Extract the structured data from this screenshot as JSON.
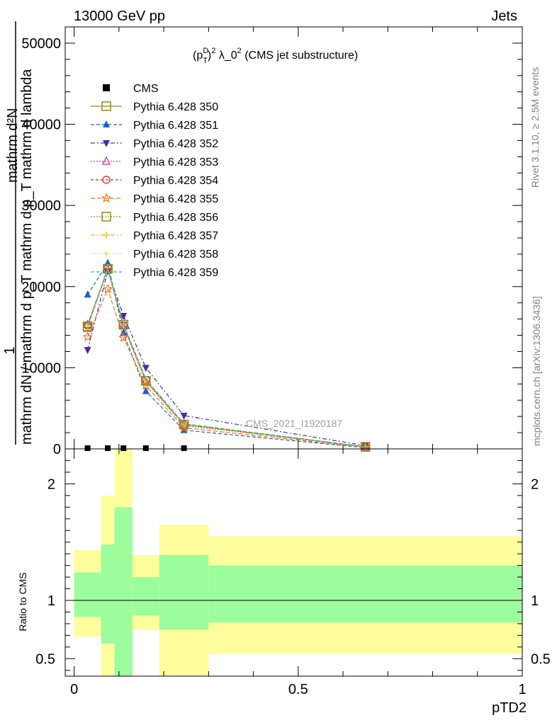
{
  "header": {
    "left": "13000 GeV pp",
    "right": "Jets",
    "title_main": "(p",
    "title_sup1": "D",
    "title_sub": "T",
    "title_rest": ")",
    "title_sup2": "2",
    "title_tail": " λ_0",
    "title_sup3": "2",
    "title_end": " (CMS jet substructure)"
  },
  "side_labels": {
    "rivet": "Rivet 3.1.10, ≥ 2.5M events",
    "mcplots": "mcplots.cern.ch [arXiv:1306.3436]",
    "watermark": "CMS_2021_I1920187"
  },
  "ylabel_top": {
    "one": "1",
    "num": "mathrm d²N",
    "den": "mathrm dN / mathrm d p_T mathrm d p_T mathrm d lambda"
  },
  "ratio_ylabel": "Ratio to CMS",
  "xlabel": "pTD2",
  "chart_data": [
    {
      "type": "line",
      "panel": "main",
      "xlim": [
        -0.02,
        1.0
      ],
      "ylim": [
        0,
        52000
      ],
      "yticks": [
        0,
        10000,
        20000,
        30000,
        40000,
        50000
      ],
      "ytick_labels": [
        "0",
        "10000",
        "20000",
        "30000",
        "40000",
        "50000"
      ],
      "x": [
        0.03,
        0.075,
        0.11,
        0.16,
        0.245,
        0.65
      ],
      "bin_edges": [
        0.0,
        0.06,
        0.09,
        0.13,
        0.19,
        0.3,
        1.0
      ],
      "series": [
        {
          "name": "CMS",
          "color": "#000000",
          "marker": "square-filled",
          "dash": "none",
          "values": [
            0,
            0,
            0,
            0,
            0,
            0
          ]
        },
        {
          "name": "Pythia 6.428 350",
          "color": "#8c8c2a",
          "marker": "square-open",
          "dash": "solid",
          "values": [
            15000,
            22200,
            15300,
            8400,
            3000,
            250
          ]
        },
        {
          "name": "Pythia 6.428 351",
          "color": "#1f5fbf",
          "marker": "triangle-up-filled",
          "dash": "5,3",
          "values": [
            19000,
            22900,
            14300,
            7100,
            2300,
            150
          ]
        },
        {
          "name": "Pythia 6.428 352",
          "color": "#4b2aa8",
          "marker": "triangle-down-filled",
          "dash": "6,3,2,3",
          "values": [
            12200,
            21900,
            16400,
            10000,
            4100,
            400
          ]
        },
        {
          "name": "Pythia 6.428 353",
          "color": "#c0307f",
          "marker": "triangle-up-open",
          "dash": "2,2",
          "values": [
            15300,
            22100,
            15100,
            8300,
            2900,
            240
          ]
        },
        {
          "name": "Pythia 6.428 354",
          "color": "#d62020",
          "marker": "circle-open",
          "dash": "4,3",
          "values": [
            15200,
            22300,
            15200,
            8500,
            3000,
            250
          ]
        },
        {
          "name": "Pythia 6.428 355",
          "color": "#f07020",
          "marker": "star-open",
          "dash": "6,3",
          "values": [
            13800,
            19700,
            13700,
            7800,
            2600,
            200
          ]
        },
        {
          "name": "Pythia 6.428 356",
          "color": "#8c8c2a",
          "marker": "square-open",
          "dash": "2,2",
          "values": [
            15100,
            22200,
            15300,
            8400,
            3000,
            250
          ]
        },
        {
          "name": "Pythia 6.428 357",
          "color": "#d4c400",
          "marker": "cross",
          "dash": "6,3,2,3",
          "values": [
            15100,
            22300,
            15400,
            8500,
            3000,
            250
          ]
        },
        {
          "name": "Pythia 6.428 358",
          "color": "#b8e020",
          "marker": "plus-dot",
          "dash": "1,2",
          "values": [
            15200,
            22300,
            15400,
            8500,
            3100,
            260
          ]
        },
        {
          "name": "Pythia 6.428 359",
          "color": "#20b0b0",
          "marker": "none",
          "dash": "5,3",
          "values": [
            15300,
            22200,
            15400,
            8600,
            3100,
            260
          ]
        }
      ]
    },
    {
      "type": "area",
      "panel": "ratio",
      "xlim": [
        -0.02,
        1.0
      ],
      "ylim": [
        0.35,
        2.3
      ],
      "yticks": [
        0.5,
        1,
        2
      ],
      "ytick_labels": [
        "0.5",
        "1",
        "2"
      ],
      "xticks": [
        0,
        0.5,
        1
      ],
      "xtick_labels": [
        "0",
        "0.5",
        "1"
      ],
      "reference_line": 1,
      "bands": [
        {
          "x0": 0.0,
          "x1": 0.06,
          "green": [
            0.86,
            1.24
          ],
          "yellow": [
            0.69,
            1.43
          ]
        },
        {
          "x0": 0.06,
          "x1": 0.09,
          "green": [
            0.63,
            1.48
          ],
          "yellow": [
            0.3,
            1.9
          ]
        },
        {
          "x0": 0.09,
          "x1": 0.13,
          "green": [
            0.3,
            1.8
          ],
          "yellow": [
            0.3,
            2.5
          ]
        },
        {
          "x0": 0.13,
          "x1": 0.19,
          "green": [
            0.87,
            1.2
          ],
          "yellow": [
            0.75,
            1.39
          ]
        },
        {
          "x0": 0.19,
          "x1": 0.3,
          "green": [
            0.75,
            1.39
          ],
          "yellow": [
            0.3,
            1.65
          ]
        },
        {
          "x0": 0.3,
          "x1": 1.0,
          "green": [
            0.81,
            1.3
          ],
          "yellow": [
            0.54,
            1.55
          ]
        }
      ],
      "band_colors": {
        "green": "#9cfd9c",
        "yellow": "#fefe9c"
      }
    }
  ]
}
